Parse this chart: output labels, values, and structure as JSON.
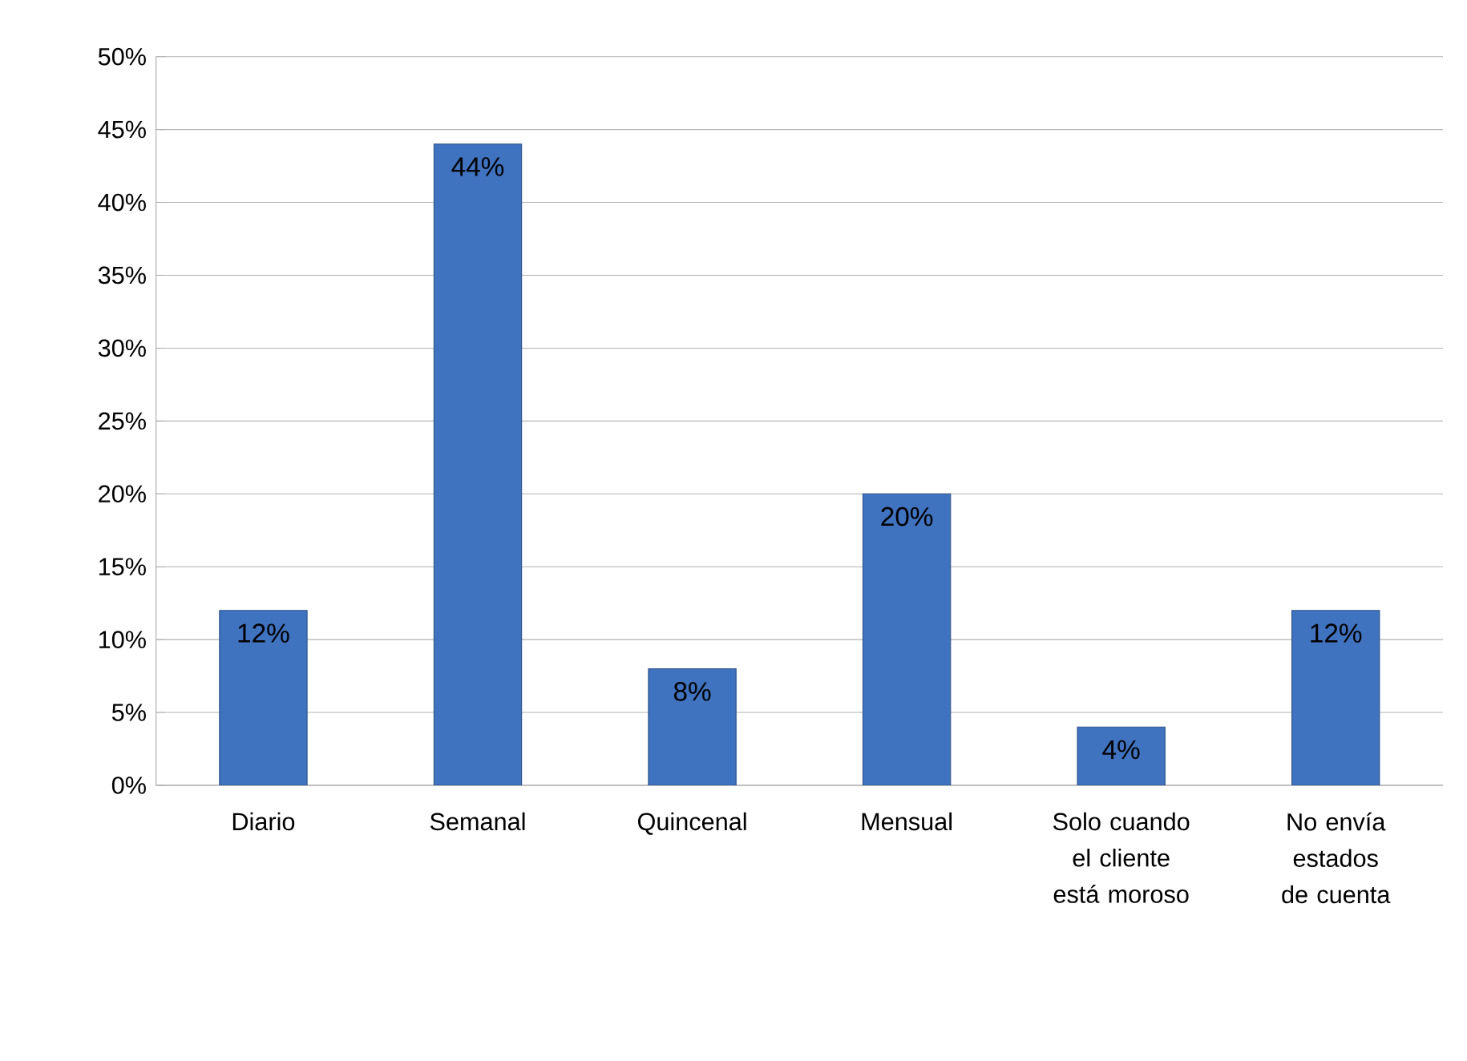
{
  "chart_data": {
    "type": "bar",
    "categories": [
      "Diario",
      "Semanal",
      "Quincenal",
      "Mensual",
      "Solo cuando el cliente está moroso",
      "No envía estados de cuenta"
    ],
    "values": [
      12,
      44,
      8,
      20,
      4,
      12
    ],
    "value_labels": [
      "12%",
      "44%",
      "8%",
      "20%",
      "4%",
      "12%"
    ],
    "color": "#3f72bf",
    "ylim": [
      0,
      50
    ],
    "yticks": [
      {
        "value": 0,
        "label": "0%"
      },
      {
        "value": 5,
        "label": "5%"
      },
      {
        "value": 10,
        "label": "10%"
      },
      {
        "value": 15,
        "label": "15%"
      },
      {
        "value": 20,
        "label": "20%"
      },
      {
        "value": 25,
        "label": "25%"
      },
      {
        "value": 30,
        "label": "30%"
      },
      {
        "value": 35,
        "label": "35%"
      },
      {
        "value": 40,
        "label": "40%"
      },
      {
        "value": 45,
        "label": "45%"
      },
      {
        "value": 50,
        "label": "50%"
      }
    ],
    "grid": "y"
  }
}
